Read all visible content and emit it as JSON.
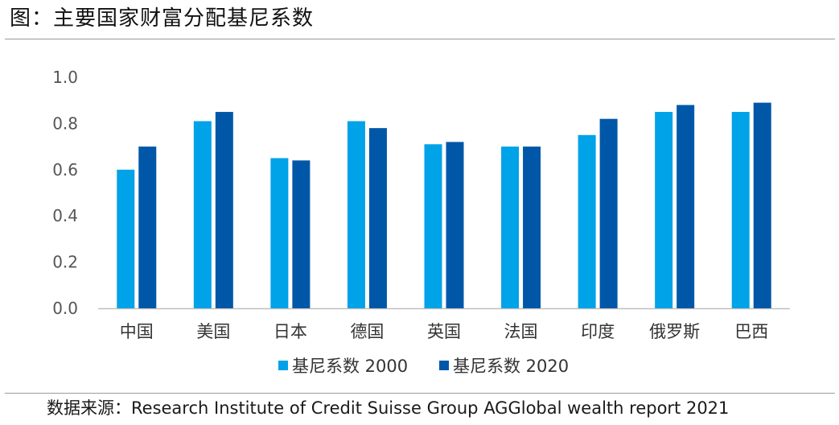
{
  "page_title": "图：主要国家财富分配基尼系数",
  "source_note": "数据来源：Research Institute of Credit Suisse Group AGGlobal wealth report 2021",
  "chart_data": {
    "type": "bar",
    "title": "",
    "xlabel": "",
    "ylabel": "",
    "ylim": [
      0,
      1.0
    ],
    "yticks": [
      "0.0",
      "0.2",
      "0.4",
      "0.6",
      "0.8",
      "1.0"
    ],
    "grid": false,
    "legend_position": "bottom",
    "categories": [
      "中国",
      "美国",
      "日本",
      "德国",
      "英国",
      "法国",
      "印度",
      "俄罗斯",
      "巴西"
    ],
    "series": [
      {
        "name": "基尼系数 2000",
        "color": "#00a2e8",
        "values": [
          0.6,
          0.81,
          0.65,
          0.81,
          0.71,
          0.7,
          0.75,
          0.85,
          0.85
        ]
      },
      {
        "name": "基尼系数 2020",
        "color": "#0057a8",
        "values": [
          0.7,
          0.85,
          0.64,
          0.78,
          0.72,
          0.7,
          0.82,
          0.88,
          0.89
        ]
      }
    ]
  }
}
